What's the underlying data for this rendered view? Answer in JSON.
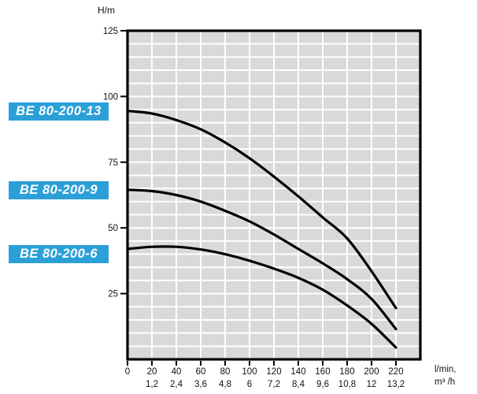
{
  "figure": {
    "background_color": "#ffffff"
  },
  "chart_data": {
    "type": "line",
    "title": "",
    "ylabel": "H/m",
    "xlabel_units": [
      "l/min,",
      "m³ /h"
    ],
    "y_ticks": [
      25,
      50,
      75,
      100,
      125
    ],
    "x_ticks_lmin": [
      0,
      20,
      40,
      60,
      80,
      100,
      120,
      140,
      160,
      180,
      200,
      220
    ],
    "x_ticks_m3h": [
      "1,2",
      "2,4",
      "3,6",
      "4,8",
      "6",
      "7,2",
      "8,4",
      "9,6",
      "10,8",
      "12",
      "13,2"
    ],
    "ylim": [
      0,
      125
    ],
    "xlim": [
      0,
      240
    ],
    "grid": {
      "x_step": 20,
      "y_step": 5,
      "cell_color": "#d9d9d9",
      "line_color": "#ffffff"
    },
    "curve_color": "#000000",
    "frame_color": "#000000",
    "tick_text_color": "#111111",
    "label_style": {
      "bg": "#2ba0d8",
      "fg": "#ffffff"
    },
    "series": [
      {
        "name": "BE 80-200-13",
        "x_lmin": [
          0,
          20,
          40,
          60,
          80,
          100,
          120,
          140,
          160,
          180,
          200,
          220
        ],
        "head_m": [
          94.5,
          93.5,
          91,
          87.5,
          82.5,
          76.5,
          69.5,
          62,
          54,
          46,
          33.5,
          19.5
        ]
      },
      {
        "name": "BE 80-200-9",
        "x_lmin": [
          0,
          20,
          40,
          60,
          80,
          100,
          120,
          140,
          160,
          180,
          200,
          220
        ],
        "head_m": [
          64.5,
          64,
          62.5,
          60,
          56.5,
          52.5,
          47.5,
          42,
          36.5,
          30.5,
          23,
          11.5
        ]
      },
      {
        "name": "BE 80-200-6",
        "x_lmin": [
          0,
          20,
          40,
          60,
          80,
          100,
          120,
          140,
          160,
          180,
          200,
          220
        ],
        "head_m": [
          42,
          42.8,
          42.8,
          41.8,
          40,
          37.5,
          34.5,
          31,
          26.5,
          20.5,
          13.5,
          4.5
        ]
      }
    ]
  }
}
